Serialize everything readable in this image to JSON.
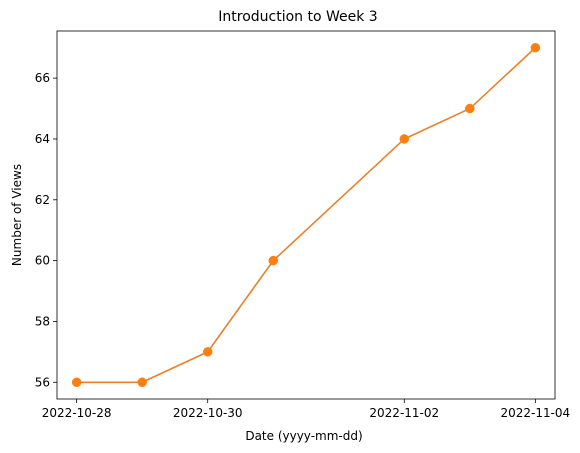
{
  "chart_data": {
    "type": "line",
    "title": "Introduction to Week 3",
    "xlabel": "Date (yyyy-mm-dd)",
    "ylabel": "Number of Views",
    "x": [
      "2022-10-28",
      "2022-10-29",
      "2022-10-30",
      "2022-10-31",
      "2022-11-02",
      "2022-11-03",
      "2022-11-04"
    ],
    "series": [
      {
        "values": [
          56,
          56,
          57,
          60,
          64,
          65,
          67
        ],
        "color": "#ff7f0e",
        "line_color": "#e8812a",
        "marker": "circle"
      }
    ],
    "xlim": [
      "2022-10-27T16:48",
      "2022-11-04T07:12"
    ],
    "ylim": [
      55.45,
      67.55
    ],
    "xticks": [
      "2022-10-28",
      "2022-10-30",
      "2022-11-02",
      "2022-11-04"
    ],
    "yticks": [
      56,
      58,
      60,
      62,
      64,
      66
    ],
    "grid": false,
    "legend": "none"
  }
}
